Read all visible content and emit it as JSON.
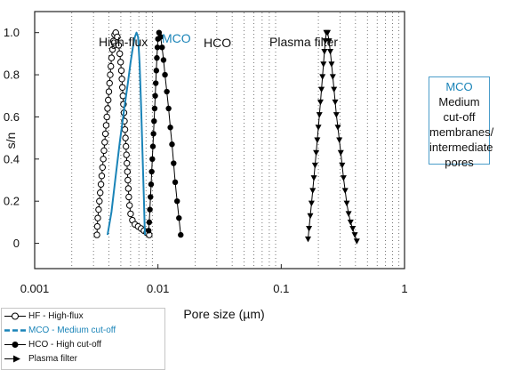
{
  "chart_data": {
    "type": "line",
    "title": "",
    "xlabel": "Pore size (µm)",
    "ylabel": "s/n",
    "xscale": "log",
    "xlim": [
      0.001,
      1
    ],
    "ylim": [
      -0.12,
      1.1
    ],
    "xticks": [
      {
        "value": 0.001,
        "label": "0.001"
      },
      {
        "value": 0.01,
        "label": "0.01"
      },
      {
        "value": 0.1,
        "label": "0.1"
      },
      {
        "value": 1,
        "label": "1"
      }
    ],
    "yticks": [
      {
        "value": 0,
        "label": "0"
      },
      {
        "value": 0.2,
        "label": "0.2"
      },
      {
        "value": 0.4,
        "label": "0.4"
      },
      {
        "value": 0.6,
        "label": "0.6"
      },
      {
        "value": 0.8,
        "label": "0.8"
      },
      {
        "value": 1.0,
        "label": "1.0"
      }
    ],
    "grid": "vertical dotted lines at log minor ticks",
    "series": [
      {
        "name": "HF - High-flux",
        "label": "High-flux",
        "marker": "open-circle",
        "color": "#000000",
        "points": [
          [
            0.0032,
            0.04
          ],
          [
            0.00322,
            0.08
          ],
          [
            0.00325,
            0.12
          ],
          [
            0.0033,
            0.16
          ],
          [
            0.00335,
            0.2
          ],
          [
            0.0034,
            0.24
          ],
          [
            0.00345,
            0.28
          ],
          [
            0.0035,
            0.32
          ],
          [
            0.00355,
            0.36
          ],
          [
            0.0036,
            0.4
          ],
          [
            0.00365,
            0.44
          ],
          [
            0.0037,
            0.48
          ],
          [
            0.00375,
            0.52
          ],
          [
            0.0038,
            0.56
          ],
          [
            0.00385,
            0.6
          ],
          [
            0.0039,
            0.64
          ],
          [
            0.00395,
            0.68
          ],
          [
            0.004,
            0.72
          ],
          [
            0.00405,
            0.76
          ],
          [
            0.0041,
            0.8
          ],
          [
            0.00415,
            0.84
          ],
          [
            0.0042,
            0.88
          ],
          [
            0.00428,
            0.92
          ],
          [
            0.00435,
            0.96
          ],
          [
            0.00445,
            0.99
          ],
          [
            0.00455,
            1.0
          ],
          [
            0.00468,
            0.98
          ],
          [
            0.0048,
            0.94
          ],
          [
            0.0049,
            0.9
          ],
          [
            0.00498,
            0.86
          ],
          [
            0.00505,
            0.82
          ],
          [
            0.0051,
            0.78
          ],
          [
            0.00515,
            0.74
          ],
          [
            0.0052,
            0.7
          ],
          [
            0.00525,
            0.66
          ],
          [
            0.0053,
            0.62
          ],
          [
            0.00535,
            0.58
          ],
          [
            0.0054,
            0.54
          ],
          [
            0.00545,
            0.5
          ],
          [
            0.0055,
            0.46
          ],
          [
            0.00555,
            0.42
          ],
          [
            0.0056,
            0.38
          ],
          [
            0.00565,
            0.34
          ],
          [
            0.0057,
            0.3
          ],
          [
            0.00575,
            0.26
          ],
          [
            0.0058,
            0.22
          ],
          [
            0.00588,
            0.18
          ],
          [
            0.006,
            0.14
          ],
          [
            0.0062,
            0.11
          ],
          [
            0.0065,
            0.09
          ],
          [
            0.0069,
            0.08
          ],
          [
            0.0073,
            0.07
          ],
          [
            0.0077,
            0.06
          ],
          [
            0.0081,
            0.05
          ],
          [
            0.0085,
            0.04
          ]
        ]
      },
      {
        "name": "MCO - Medium cut-off",
        "label": "MCO",
        "marker": "none",
        "color": "#1a84b8",
        "points": [
          [
            0.0039,
            0.04
          ],
          [
            0.0042,
            0.15
          ],
          [
            0.0045,
            0.3
          ],
          [
            0.0049,
            0.48
          ],
          [
            0.0053,
            0.63
          ],
          [
            0.0057,
            0.76
          ],
          [
            0.006,
            0.86
          ],
          [
            0.0063,
            0.94
          ],
          [
            0.0065,
            0.98
          ],
          [
            0.0067,
            1.0
          ],
          [
            0.0069,
            0.98
          ],
          [
            0.0071,
            0.85
          ],
          [
            0.0073,
            0.65
          ],
          [
            0.0075,
            0.42
          ],
          [
            0.0077,
            0.2
          ],
          [
            0.0078,
            0.08
          ],
          [
            0.00785,
            0.04
          ]
        ]
      },
      {
        "name": "HCO - High cut-off",
        "label": "HCO",
        "marker": "filled-circle",
        "color": "#000000",
        "points": [
          [
            0.0084,
            0.06
          ],
          [
            0.0085,
            0.1
          ],
          [
            0.0086,
            0.16
          ],
          [
            0.0087,
            0.22
          ],
          [
            0.0088,
            0.28
          ],
          [
            0.0089,
            0.34
          ],
          [
            0.009,
            0.4
          ],
          [
            0.0091,
            0.46
          ],
          [
            0.0092,
            0.52
          ],
          [
            0.0093,
            0.58
          ],
          [
            0.0094,
            0.64
          ],
          [
            0.0095,
            0.7
          ],
          [
            0.0096,
            0.76
          ],
          [
            0.0097,
            0.82
          ],
          [
            0.0098,
            0.88
          ],
          [
            0.0099,
            0.93
          ],
          [
            0.01,
            0.97
          ],
          [
            0.0102,
            1.0
          ],
          [
            0.0105,
            0.98
          ],
          [
            0.0108,
            0.93
          ],
          [
            0.0111,
            0.87
          ],
          [
            0.0114,
            0.8
          ],
          [
            0.0118,
            0.72
          ],
          [
            0.0122,
            0.64
          ],
          [
            0.0126,
            0.55
          ],
          [
            0.013,
            0.47
          ],
          [
            0.0134,
            0.38
          ],
          [
            0.0138,
            0.29
          ],
          [
            0.0143,
            0.2
          ],
          [
            0.0148,
            0.12
          ],
          [
            0.0153,
            0.04
          ]
        ]
      },
      {
        "name": "Plasma filter",
        "label": "Plasma filter",
        "marker": "filled-triangle-down",
        "color": "#000000",
        "points": [
          [
            0.165,
            0.02
          ],
          [
            0.168,
            0.07
          ],
          [
            0.172,
            0.13
          ],
          [
            0.176,
            0.19
          ],
          [
            0.18,
            0.25
          ],
          [
            0.184,
            0.31
          ],
          [
            0.188,
            0.37
          ],
          [
            0.192,
            0.43
          ],
          [
            0.196,
            0.49
          ],
          [
            0.2,
            0.55
          ],
          [
            0.204,
            0.61
          ],
          [
            0.208,
            0.67
          ],
          [
            0.212,
            0.73
          ],
          [
            0.216,
            0.79
          ],
          [
            0.22,
            0.85
          ],
          [
            0.224,
            0.91
          ],
          [
            0.228,
            0.96
          ],
          [
            0.232,
            1.0
          ],
          [
            0.238,
            1.0
          ],
          [
            0.244,
            0.96
          ],
          [
            0.25,
            0.91
          ],
          [
            0.256,
            0.85
          ],
          [
            0.262,
            0.79
          ],
          [
            0.268,
            0.73
          ],
          [
            0.274,
            0.67
          ],
          [
            0.28,
            0.61
          ],
          [
            0.288,
            0.55
          ],
          [
            0.296,
            0.49
          ],
          [
            0.304,
            0.43
          ],
          [
            0.312,
            0.37
          ],
          [
            0.32,
            0.31
          ],
          [
            0.33,
            0.25
          ],
          [
            0.34,
            0.19
          ],
          [
            0.352,
            0.14
          ],
          [
            0.365,
            0.1
          ],
          [
            0.38,
            0.07
          ],
          [
            0.395,
            0.04
          ],
          [
            0.41,
            0.01
          ]
        ]
      }
    ],
    "curve_labels": {
      "high_flux": "High-flux",
      "mco": "MCO",
      "hco": "HCO",
      "plasma": "Plasma filter"
    }
  },
  "note_box": {
    "title": "MCO",
    "lines": [
      "Medium",
      "cut-off",
      "membranes/",
      "intermediate",
      "pores"
    ],
    "border_color": "#4a9cc9",
    "title_color": "#1a84b8"
  },
  "legend": {
    "placement": "bottom-left",
    "entries": [
      {
        "label": "HF - High-flux",
        "symbol": "open-circle-line",
        "color": "#000000"
      },
      {
        "label": "MCO - Medium cut-off",
        "symbol": "dashed-line",
        "color": "#1a84b8"
      },
      {
        "label": "HCO - High cut-off",
        "symbol": "filled-circle-line",
        "color": "#000000"
      },
      {
        "label": "Plasma filter",
        "symbol": "filled-triangle-arrow",
        "color": "#000000"
      }
    ]
  }
}
